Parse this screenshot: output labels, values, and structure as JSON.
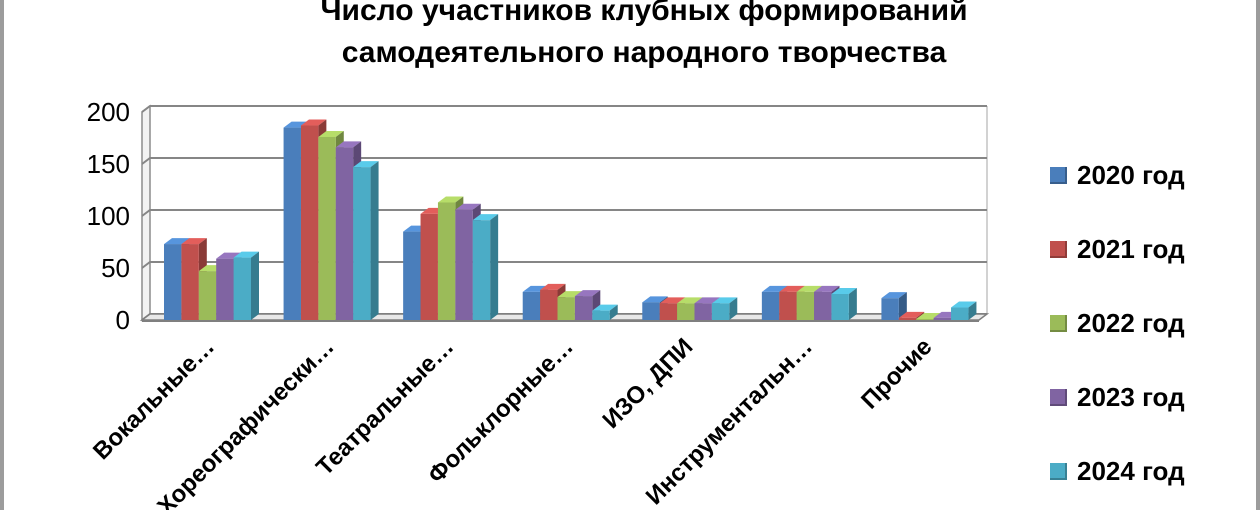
{
  "chart_data": {
    "type": "bar",
    "title": [
      "Число участников клубных формирований",
      "самодеятельного народного творчества"
    ],
    "categories": [
      "Вокальные…",
      "Хореографически…",
      "Театральные…",
      "Фольклорные…",
      "ИЗО, ДПИ",
      "Инструментальн…",
      "Прочие"
    ],
    "series": [
      {
        "name": "2020 год",
        "color": "#4a7ebb",
        "values": [
          73,
          185,
          85,
          27,
          17,
          27,
          21
        ]
      },
      {
        "name": "2021 год",
        "color": "#c0504d",
        "values": [
          73,
          187,
          102,
          29,
          16,
          27,
          2
        ]
      },
      {
        "name": "2022 год",
        "color": "#9bbb59",
        "values": [
          47,
          176,
          113,
          22,
          16,
          27,
          1
        ]
      },
      {
        "name": "2023 год",
        "color": "#8064a2",
        "values": [
          59,
          166,
          106,
          23,
          16,
          27,
          2
        ]
      },
      {
        "name": "2024 год",
        "color": "#4bacc6",
        "values": [
          60,
          147,
          96,
          9,
          16,
          25,
          12
        ]
      }
    ],
    "yticks": [
      0,
      50,
      100,
      150,
      200
    ],
    "ylim": [
      0,
      200
    ],
    "grid": true,
    "legend_position": "right",
    "style": "3d-clustered-bar"
  }
}
